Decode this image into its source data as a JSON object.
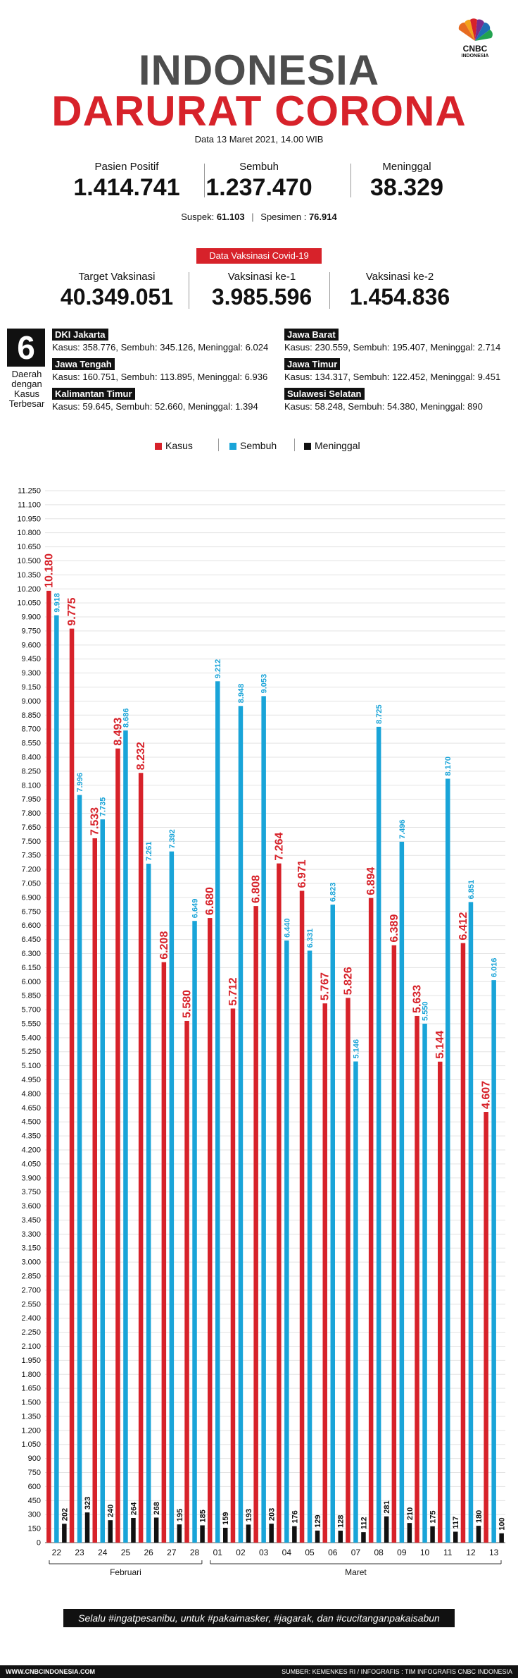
{
  "logo": {
    "brand": "CNBC",
    "sub": "INDONESIA"
  },
  "header": {
    "title_line1": "INDONESIA",
    "title_line2": "DARURAT CORONA",
    "date": "Data 13 Maret 2021, 14.00 WIB"
  },
  "stats": [
    {
      "label": "Pasien Positif",
      "value": "1.414.741"
    },
    {
      "label": "Sembuh",
      "value": "1.237.470"
    },
    {
      "label": "Meninggal",
      "value": "38.329"
    }
  ],
  "suspek": {
    "suspek_label": "Suspek:",
    "suspek_value": "61.103",
    "spesimen_label": "Spesimen :",
    "spesimen_value": "76.914"
  },
  "vaksin": {
    "badge": "Data Vaksinasi Covid-19",
    "items": [
      {
        "label": "Target Vaksinasi",
        "value": "40.349.051"
      },
      {
        "label": "Vaksinasi ke-1",
        "value": "3.985.596"
      },
      {
        "label": "Vaksinasi ke-2",
        "value": "1.454.836"
      }
    ]
  },
  "regions": {
    "count": "6",
    "count_label": "Daerah dengan Kasus Terbesar",
    "items": [
      {
        "name": "DKI Jakarta",
        "text": "Kasus: 358.776, Sembuh: 345.126, Meninggal: 6.024"
      },
      {
        "name": "Jawa Tengah",
        "text": "Kasus: 160.751, Sembuh: 113.895, Meninggal: 6.936"
      },
      {
        "name": "Kalimantan Timur",
        "text": "Kasus: 59.645, Sembuh: 52.660, Meninggal: 1.394"
      },
      {
        "name": "Jawa Barat",
        "text": "Kasus: 230.559, Sembuh: 195.407, Meninggal: 2.714"
      },
      {
        "name": "Jawa Timur",
        "text": "Kasus: 134.317, Sembuh: 122.452, Meninggal: 9.451"
      },
      {
        "name": "Sulawesi Selatan",
        "text": "Kasus: 58.248, Sembuh: 54.380, Meninggal: 890"
      }
    ]
  },
  "legend": [
    {
      "name": "Kasus",
      "color": "#d7222a"
    },
    {
      "name": "Sembuh",
      "color": "#19a4d8"
    },
    {
      "name": "Meninggal",
      "color": "#111111"
    }
  ],
  "chart_data": {
    "type": "bar",
    "categories": [
      "22",
      "23",
      "24",
      "25",
      "26",
      "27",
      "28",
      "01",
      "02",
      "03",
      "04",
      "05",
      "06",
      "07",
      "08",
      "09",
      "10",
      "11",
      "12",
      "13"
    ],
    "month_groups": [
      {
        "label": "Februari",
        "count": 7
      },
      {
        "label": "Maret",
        "count": 13
      }
    ],
    "ylim": [
      0,
      11250
    ],
    "ytick_step": 150,
    "series": [
      {
        "name": "Kasus",
        "color": "#d7222a",
        "values": [
          10180,
          9775,
          7533,
          8493,
          8232,
          6208,
          5580,
          6680,
          5712,
          6808,
          7264,
          6971,
          5767,
          5826,
          6894,
          6389,
          5633,
          5144,
          6412,
          4607
        ]
      },
      {
        "name": "Sembuh",
        "color": "#19a4d8",
        "values": [
          9918,
          7996,
          7735,
          8686,
          7261,
          7392,
          6649,
          9212,
          8948,
          9053,
          6440,
          6331,
          6823,
          5146,
          8725,
          7496,
          5550,
          8170,
          6851,
          6016
        ]
      },
      {
        "name": "Meninggal",
        "color": "#111111",
        "values": [
          202,
          323,
          240,
          264,
          268,
          195,
          185,
          159,
          193,
          203,
          176,
          129,
          128,
          112,
          281,
          210,
          175,
          117,
          180,
          100
        ]
      }
    ]
  },
  "footer": {
    "slogan": "Selalu #ingatpesanibu, untuk #pakaimasker, #jagarak, dan #cucitanganpakaisabun",
    "site": "WWW.CNBCINDONESIA.COM",
    "source": "SUMBER: KEMENKES RI / INFOGRAFIS : TIM INFOGRAFIS CNBC INDONESIA"
  }
}
